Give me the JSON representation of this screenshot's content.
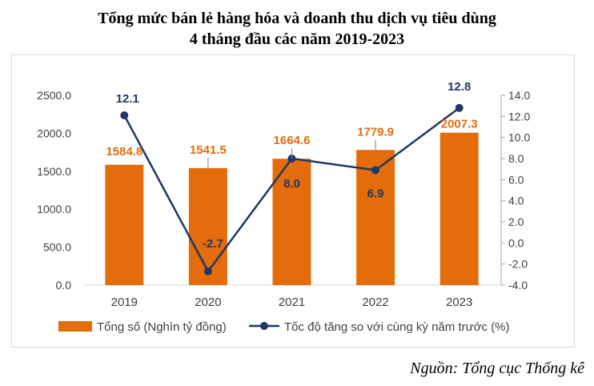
{
  "title_line1": "Tổng mức bán lẻ hàng hóa và doanh thu dịch vụ tiêu dùng",
  "title_line2": "4 tháng đầu các năm 2019-2023",
  "source": "Nguồn: Tổng cục Thống kê",
  "chart_data": {
    "type": "bar",
    "categories": [
      "2019",
      "2020",
      "2021",
      "2022",
      "2023"
    ],
    "series": [
      {
        "name": "Tổng số (Nghìn tỷ đồng)",
        "type": "bar",
        "axis": "left",
        "color": "#e46c0a",
        "values": [
          1584.8,
          1541.5,
          1664.6,
          1779.9,
          2007.3
        ],
        "labels": [
          "1584.8",
          "1541.5",
          "1664.6",
          "1779.9",
          "2007.3"
        ]
      },
      {
        "name": "Tốc độ tăng so với cùng kỳ năm trước (%)",
        "type": "line",
        "axis": "right",
        "color": "#1f3864",
        "values": [
          12.1,
          -2.7,
          8.0,
          6.9,
          12.8
        ],
        "labels": [
          "12.1",
          "-2.7",
          "8.0",
          "6.9",
          "12.8"
        ]
      }
    ],
    "y_left": {
      "ylim": [
        0,
        2500
      ],
      "ticks": [
        0,
        500,
        1000,
        1500,
        2000,
        2500
      ],
      "tick_labels": [
        "0.0",
        "500.0",
        "1000.0",
        "1500.0",
        "2000.0",
        "2500.0"
      ]
    },
    "y_right": {
      "ylim": [
        -4,
        14
      ],
      "ticks": [
        -4,
        -2,
        0,
        2,
        4,
        6,
        8,
        10,
        12,
        14
      ],
      "tick_labels": [
        "-4.0",
        "-2.0",
        "0.0",
        "2.0",
        "4.0",
        "6.0",
        "8.0",
        "10.0",
        "12.0",
        "14.0"
      ]
    },
    "grid": false,
    "legend_position": "bottom",
    "xlabel": "",
    "ylabel": ""
  }
}
